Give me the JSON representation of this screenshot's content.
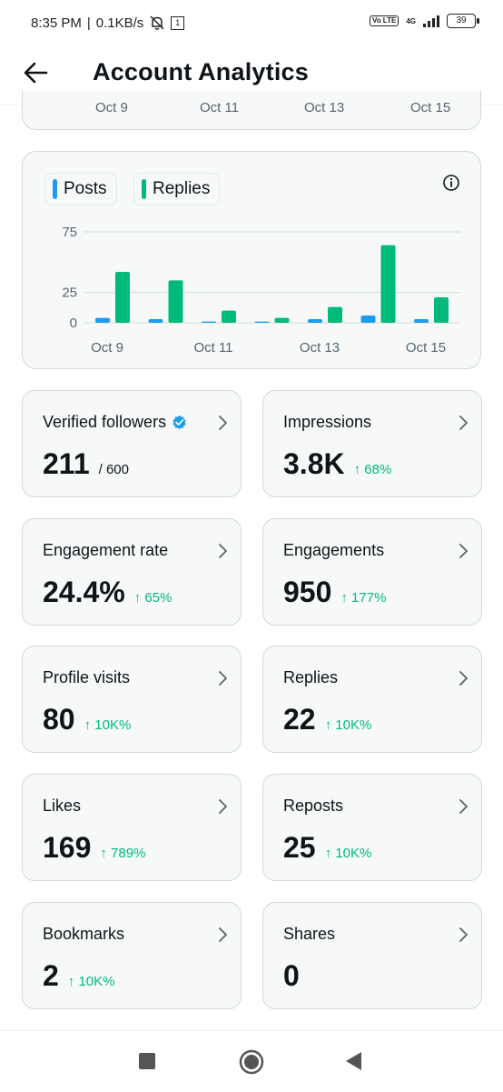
{
  "status_bar": {
    "time": "8:35 PM",
    "speed": "0.1KB/s",
    "sim_badge": "1",
    "volte": "Vo LTE",
    "network": "4G",
    "battery": "39"
  },
  "header": {
    "title": "Account Analytics",
    "back_icon": "arrow-left-icon"
  },
  "prev_chart": {
    "x_labels": [
      "Oct 9",
      "Oct 11",
      "Oct 13",
      "Oct 15"
    ]
  },
  "chart_data": {
    "type": "bar",
    "categories": [
      "Oct 9",
      "Oct 10",
      "Oct 11",
      "Oct 12",
      "Oct 13",
      "Oct 14",
      "Oct 15"
    ],
    "x_tick_labels": [
      "Oct 9",
      "Oct 11",
      "Oct 13",
      "Oct 15"
    ],
    "series": [
      {
        "name": "Posts",
        "color": "#1d9bf0",
        "values": [
          4,
          3,
          1,
          1,
          3,
          6,
          3
        ]
      },
      {
        "name": "Replies",
        "color": "#00ba7c",
        "values": [
          42,
          35,
          10,
          4,
          13,
          64,
          21
        ]
      }
    ],
    "y_ticks": [
      "75",
      "25",
      "0"
    ],
    "ylim": [
      0,
      75
    ],
    "legend_position": "top-left",
    "grid": true
  },
  "stats": [
    {
      "label": "Verified followers",
      "value": "211",
      "sub": "/ 600",
      "change": "",
      "verified": true
    },
    {
      "label": "Impressions",
      "value": "3.8K",
      "sub": "",
      "change": "↑ 68%"
    },
    {
      "label": "Engagement rate",
      "value": "24.4%",
      "sub": "",
      "change": "↑ 65%"
    },
    {
      "label": "Engagements",
      "value": "950",
      "sub": "",
      "change": "↑ 177%"
    },
    {
      "label": "Profile visits",
      "value": "80",
      "sub": "",
      "change": "↑ 10K%"
    },
    {
      "label": "Replies",
      "value": "22",
      "sub": "",
      "change": "↑ 10K%"
    },
    {
      "label": "Likes",
      "value": "169",
      "sub": "",
      "change": "↑ 789%"
    },
    {
      "label": "Reposts",
      "value": "25",
      "sub": "",
      "change": "↑ 10K%"
    },
    {
      "label": "Bookmarks",
      "value": "2",
      "sub": "",
      "change": "↑ 10K%"
    },
    {
      "label": "Shares",
      "value": "0",
      "sub": "",
      "change": ""
    }
  ],
  "nav": {
    "recents_icon": "square-icon",
    "home_icon": "circle-icon",
    "back_icon": "triangle-back-icon"
  }
}
